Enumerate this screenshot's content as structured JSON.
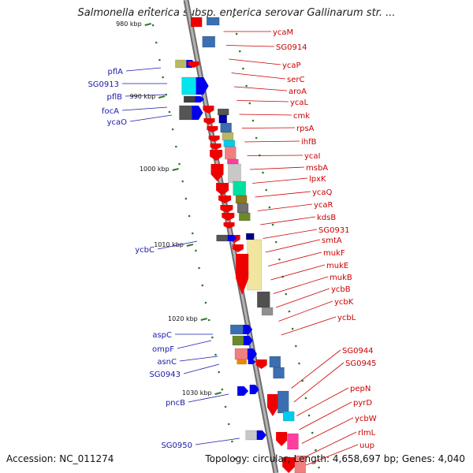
{
  "header": {
    "title": "Salmonella enterica subsp. enterica serovar Gallinarum str. ..."
  },
  "footer": {
    "accession": "Accession: NC_011274",
    "stats": "Topology: circular; Length: 4,658,697 bp; Genes: 4,040"
  },
  "scale_marks": [
    {
      "label": "980 kbp"
    },
    {
      "label": "990 kbp"
    },
    {
      "label": "1000 kbp"
    },
    {
      "label": "1010 kbp"
    },
    {
      "label": "1020 kbp"
    },
    {
      "label": "1030 kbp"
    }
  ],
  "genes_left": [
    {
      "name": "pflA"
    },
    {
      "name": "SG0913"
    },
    {
      "name": "pflB"
    },
    {
      "name": "focA"
    },
    {
      "name": "ycaO"
    },
    {
      "name": "ycbC"
    },
    {
      "name": "aspC"
    },
    {
      "name": "ompF"
    },
    {
      "name": "asnC"
    },
    {
      "name": "SG0943"
    },
    {
      "name": "pncB"
    },
    {
      "name": "SG0950"
    }
  ],
  "genes_right": [
    {
      "name": "ycaM"
    },
    {
      "name": "SG0914"
    },
    {
      "name": "ycaP"
    },
    {
      "name": "serC"
    },
    {
      "name": "aroA"
    },
    {
      "name": "ycaL"
    },
    {
      "name": "cmk"
    },
    {
      "name": "rpsA"
    },
    {
      "name": "ihfB"
    },
    {
      "name": "ycaI"
    },
    {
      "name": "msbA"
    },
    {
      "name": "lpxK"
    },
    {
      "name": "ycaQ"
    },
    {
      "name": "ycaR"
    },
    {
      "name": "kdsB"
    },
    {
      "name": "SG0931"
    },
    {
      "name": "smtA"
    },
    {
      "name": "mukF"
    },
    {
      "name": "mukE"
    },
    {
      "name": "mukB"
    },
    {
      "name": "ycbB"
    },
    {
      "name": "ycbK"
    },
    {
      "name": "ycbL"
    },
    {
      "name": "SG0944"
    },
    {
      "name": "SG0945"
    },
    {
      "name": "pepN"
    },
    {
      "name": "pyrD"
    },
    {
      "name": "ycbW"
    },
    {
      "name": "rlmL"
    },
    {
      "name": "uup"
    }
  ],
  "colors": {
    "left_label": "#1a1aaa",
    "right_label": "#cc0000",
    "backbone": "#8a8a8a",
    "forward_strand": "#0000ee",
    "reverse_strand": "#ee0000"
  }
}
